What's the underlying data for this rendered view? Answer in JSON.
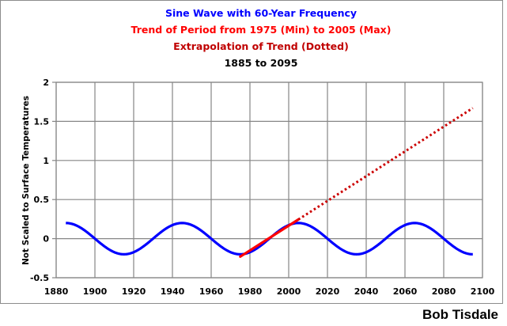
{
  "chart_data": {
    "type": "line",
    "title_lines": [
      {
        "text": "Sine Wave with 60-Year Frequency",
        "color": "#0000ff"
      },
      {
        "text": "Trend of Period from 1975 (Min) to 2005 (Max)",
        "color": "#ff0000"
      },
      {
        "text": "Extrapolation of Trend (Dotted)",
        "color": "#c00000"
      },
      {
        "text": "1885 to 2095",
        "color": "#000000"
      }
    ],
    "xlabel": "",
    "ylabel": "Not Scaled to Surface Temperatures",
    "xlim": [
      1880,
      2100
    ],
    "ylim": [
      -0.5,
      2
    ],
    "xticks": [
      1880,
      1900,
      1920,
      1940,
      1960,
      1980,
      2000,
      2020,
      2040,
      2060,
      2080,
      2100
    ],
    "yticks": [
      -0.5,
      0,
      0.5,
      1,
      1.5,
      2
    ],
    "ytick_labels": [
      "-0.5",
      "0",
      "0.5",
      "1",
      "1.5",
      "2"
    ],
    "grid": true,
    "series": [
      {
        "name": "Sine Wave",
        "color": "#0000ff",
        "style": "solid",
        "function": "0.2*cos(2*pi*(x-1885)/60)",
        "amplitude": 0.2,
        "period_years": 60,
        "x_range": [
          1885,
          2095
        ],
        "x": [
          1885,
          1890,
          1895,
          1900,
          1905,
          1910,
          1915,
          1920,
          1925,
          1930,
          1935,
          1940,
          1945,
          1950,
          1955,
          1960,
          1965,
          1970,
          1975,
          1980,
          1985,
          1990,
          1995,
          2000,
          2005,
          2010,
          2015,
          2020,
          2025,
          2030,
          2035,
          2040,
          2045,
          2050,
          2055,
          2060,
          2065,
          2070,
          2075,
          2080,
          2085,
          2090,
          2095
        ],
        "values": [
          0.2,
          0.173,
          0.1,
          0,
          -0.1,
          -0.173,
          -0.2,
          -0.173,
          -0.1,
          0,
          0.1,
          0.173,
          0.2,
          0.173,
          0.1,
          0,
          -0.1,
          -0.173,
          -0.2,
          -0.173,
          -0.1,
          0,
          0.1,
          0.173,
          0.2,
          0.173,
          0.1,
          0,
          -0.1,
          -0.173,
          -0.2,
          -0.173,
          -0.1,
          0,
          0.1,
          0.173,
          0.2,
          0.173,
          0.1,
          0,
          -0.1,
          -0.173,
          -0.2
        ]
      },
      {
        "name": "Trend 1975-2005",
        "color": "#ff0000",
        "style": "solid",
        "x": [
          1975,
          2005
        ],
        "values": [
          -0.23,
          0.245
        ]
      },
      {
        "name": "Extrapolation of Trend",
        "color": "#cc0000",
        "style": "dotted",
        "x": [
          2005,
          2095
        ],
        "values": [
          0.245,
          1.67
        ]
      }
    ],
    "legend": "none"
  },
  "credit": "Bob Tisdale"
}
